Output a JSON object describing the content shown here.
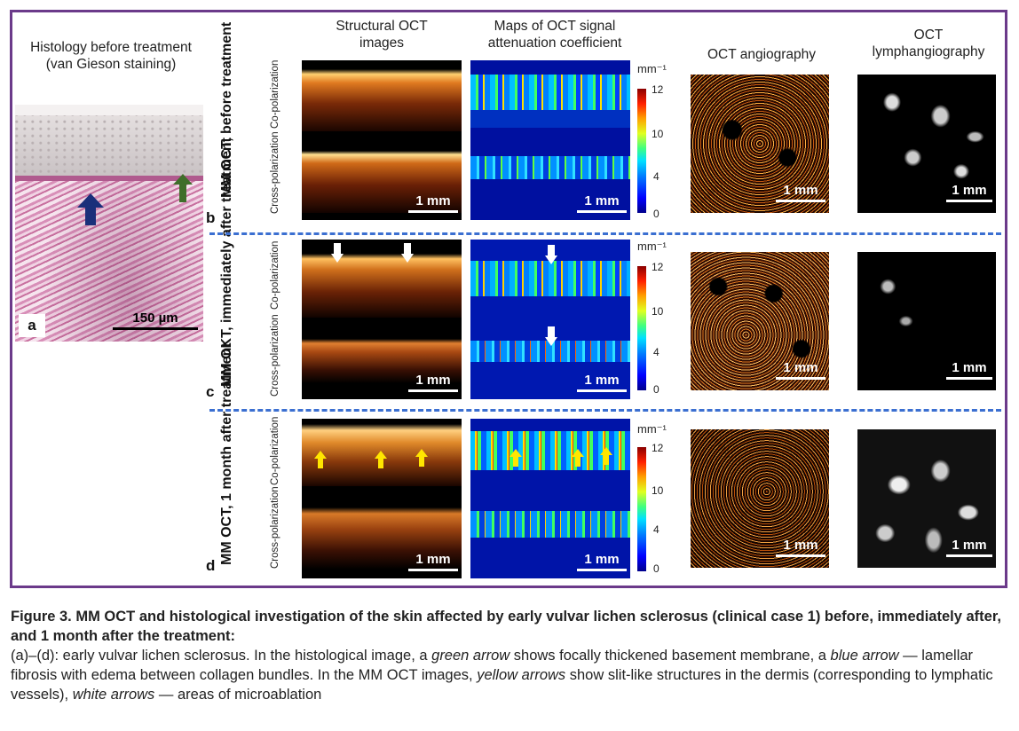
{
  "headers": {
    "histology": "Histology before treatment (van Gieson staining)",
    "structural": "Structural OCT images",
    "attenuation": "Maps of OCT signal attenuation coefficient",
    "angiography": "OCT angiography",
    "lymph": "OCT lymphangiography"
  },
  "rows": [
    {
      "label": "MM OCT, before treatment",
      "letter": "b"
    },
    {
      "label": "MM OKT, immediately after treatment",
      "letter": "c"
    },
    {
      "label": "MM OCT, 1 month after treatment",
      "letter": "d"
    }
  ],
  "polarization": {
    "co": "Co-polarization",
    "cross": "Cross-polarization"
  },
  "panel_a": {
    "letter": "a",
    "scale": "150 µm"
  },
  "scale_label": "1 mm",
  "colorbar": {
    "unit": "mm⁻¹",
    "ticks": [
      "12",
      "10",
      "4",
      "0"
    ]
  },
  "colors": {
    "frame": "#6b3a8a",
    "dash": "#3b6fd1",
    "yellow_arrow": "#ffe600",
    "blue_arrow": "#1a2f7a",
    "green_arrow": "#3f6e2a"
  },
  "caption": {
    "title": "Figure 3. MM OCT and histological investigation of the skin affected by early vulvar lichen sclerosus (clinical case 1) before, immediately after, and 1 month after the treatment:",
    "p1": "(a)–(d): early vulvar lichen sclerosus. In the histological image, a ",
    "e1": "green arrow",
    "p2": " shows focally thickened basement membrane, a ",
    "e2": "blue arrow",
    "p3": " — lamellar fibrosis with edema between collagen bundles. In the MM OCT images, ",
    "e3": "yellow arrows",
    "p4": " show slit-like structures in the dermis (corresponding to lymphatic vessels), ",
    "e4": "white arrows",
    "p5": " — areas of microablation"
  }
}
